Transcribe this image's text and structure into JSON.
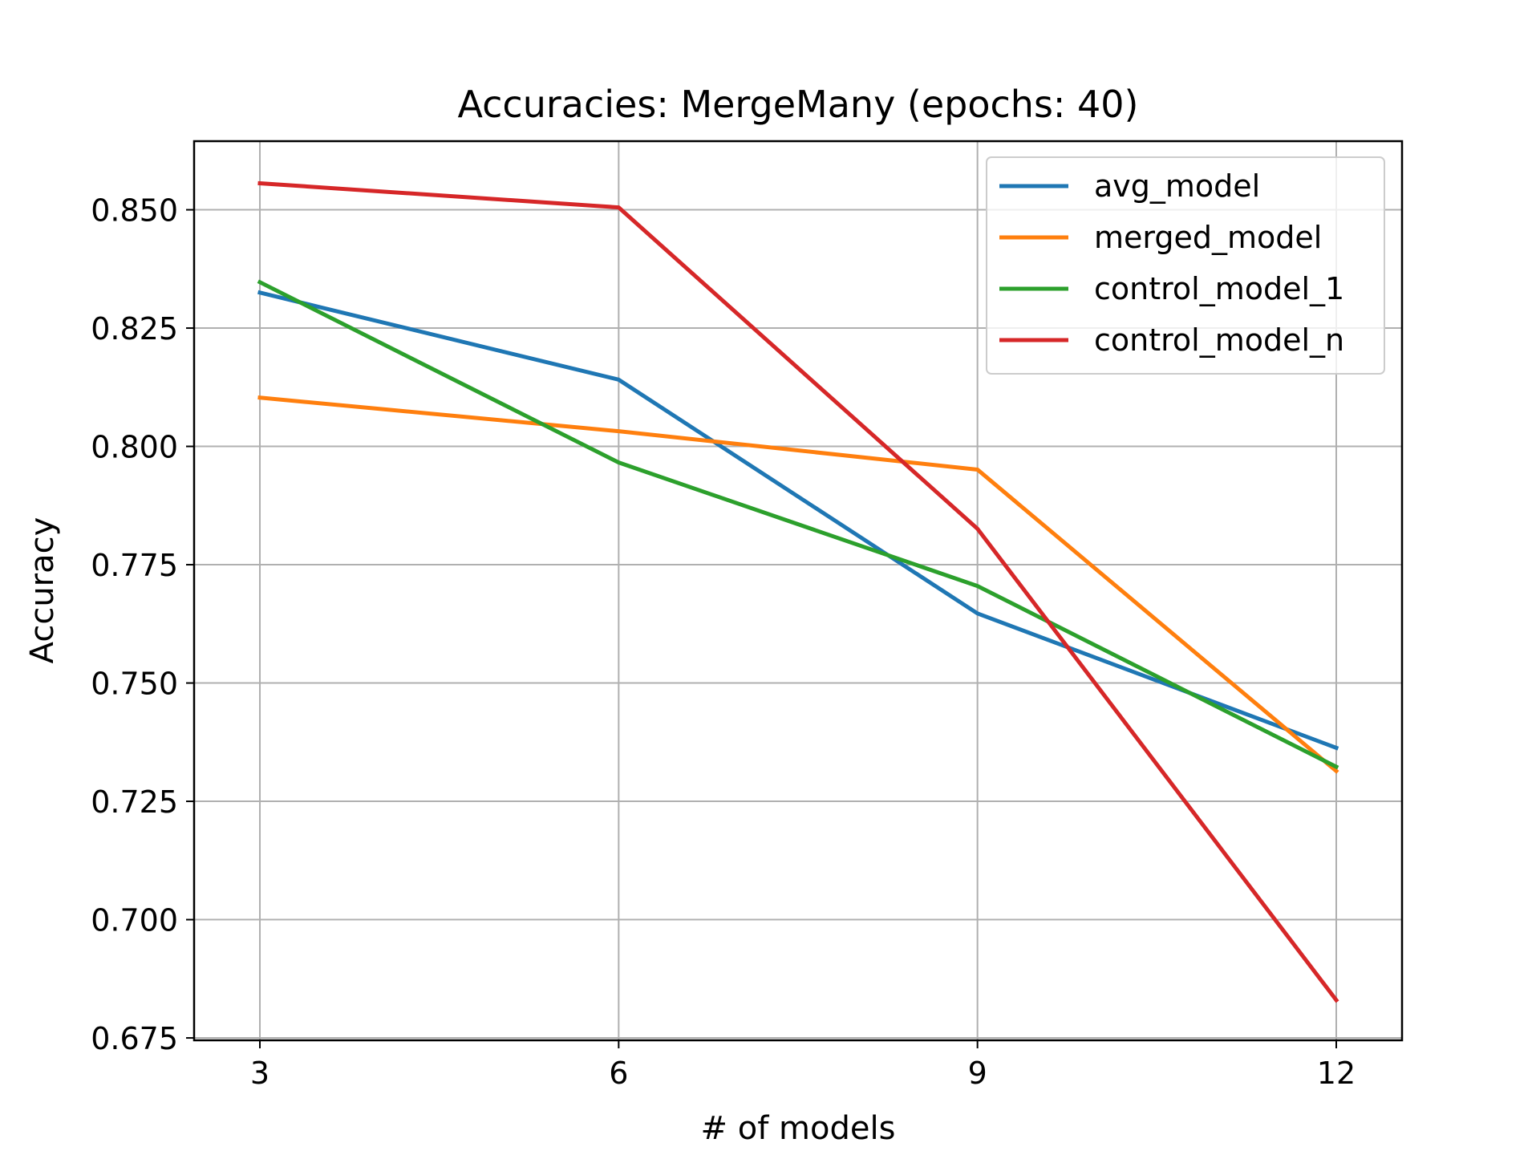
{
  "chart_data": {
    "type": "line",
    "title": "Accuracies: MergeMany (epochs: 40)",
    "xlabel": "# of models",
    "ylabel": "Accuracy",
    "x": [
      3,
      6,
      9,
      12
    ],
    "xticks": [
      "3",
      "6",
      "9",
      "12"
    ],
    "yticks": [
      "0.675",
      "0.700",
      "0.725",
      "0.750",
      "0.775",
      "0.800",
      "0.825",
      "0.850"
    ],
    "ytick_values": [
      0.675,
      0.7,
      0.725,
      0.75,
      0.775,
      0.8,
      0.825,
      0.85
    ],
    "xlim": [
      2.45,
      12.55
    ],
    "ylim": [
      0.6745,
      0.8645
    ],
    "grid": true,
    "legend_position": "top-right",
    "series": [
      {
        "name": "avg_model",
        "color": "#1f77b4",
        "values": [
          0.8325,
          0.8141,
          0.7647,
          0.7363
        ]
      },
      {
        "name": "merged_model",
        "color": "#ff7f0e",
        "values": [
          0.8103,
          0.8032,
          0.7951,
          0.7314
        ]
      },
      {
        "name": "control_model_1",
        "color": "#2ca02c",
        "values": [
          0.8347,
          0.7966,
          0.7705,
          0.7323
        ]
      },
      {
        "name": "control_model_n",
        "color": "#d62728",
        "values": [
          0.8556,
          0.8505,
          0.7826,
          0.683
        ]
      }
    ]
  }
}
